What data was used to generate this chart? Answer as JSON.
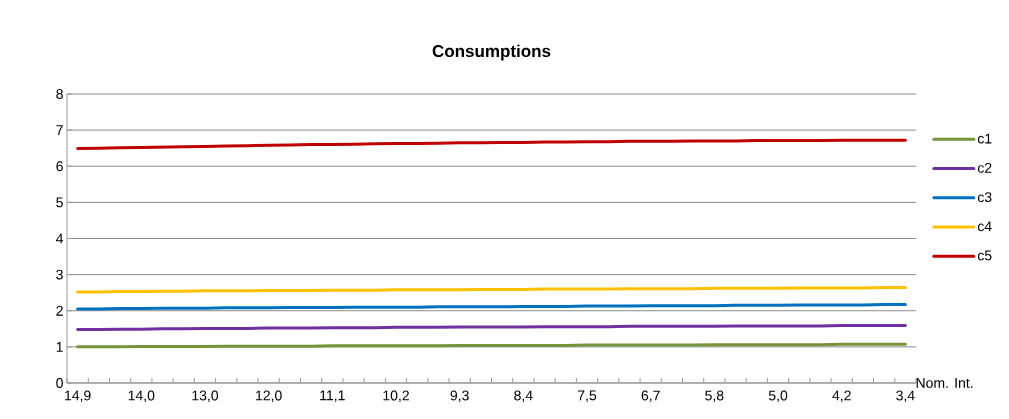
{
  "chart_data": {
    "type": "line",
    "title": "Consumptions",
    "xlabel": "Nom. Int.",
    "categories": [
      "14,9",
      null,
      null,
      "14,0",
      null,
      null,
      "13,0",
      null,
      null,
      "12,0",
      null,
      null,
      "11,1",
      null,
      null,
      "10,2",
      null,
      null,
      "9,3",
      null,
      null,
      "8,4",
      null,
      null,
      "7,5",
      null,
      null,
      "6,7",
      null,
      null,
      "5,8",
      null,
      null,
      "5,0",
      null,
      null,
      "4,2",
      null,
      null,
      "3,4"
    ],
    "ylim": [
      0,
      8
    ],
    "yticks": [
      0,
      1,
      2,
      3,
      4,
      5,
      6,
      7,
      8
    ],
    "grid": "y",
    "legend": "right",
    "marker": "none",
    "line_style": "solid",
    "series": [
      {
        "name": "c1",
        "color": "#77933c",
        "values": [
          1.0,
          1.0,
          1.0,
          1.01,
          1.01,
          1.01,
          1.01,
          1.02,
          1.02,
          1.02,
          1.02,
          1.02,
          1.03,
          1.03,
          1.03,
          1.03,
          1.03,
          1.03,
          1.04,
          1.04,
          1.04,
          1.04,
          1.04,
          1.04,
          1.05,
          1.05,
          1.05,
          1.05,
          1.05,
          1.05,
          1.06,
          1.06,
          1.06,
          1.06,
          1.06,
          1.06,
          1.07,
          1.07,
          1.07,
          1.07
        ]
      },
      {
        "name": "c2",
        "color": "#7030a0",
        "values": [
          1.48,
          1.48,
          1.49,
          1.49,
          1.5,
          1.5,
          1.51,
          1.51,
          1.51,
          1.52,
          1.52,
          1.52,
          1.53,
          1.53,
          1.53,
          1.54,
          1.54,
          1.54,
          1.55,
          1.55,
          1.55,
          1.55,
          1.56,
          1.56,
          1.56,
          1.56,
          1.57,
          1.57,
          1.57,
          1.57,
          1.57,
          1.58,
          1.58,
          1.58,
          1.58,
          1.58,
          1.59,
          1.59,
          1.59,
          1.59
        ]
      },
      {
        "name": "c3",
        "color": "#0070c0",
        "values": [
          2.05,
          2.05,
          2.06,
          2.06,
          2.07,
          2.07,
          2.07,
          2.08,
          2.08,
          2.08,
          2.09,
          2.09,
          2.09,
          2.1,
          2.1,
          2.1,
          2.1,
          2.11,
          2.11,
          2.11,
          2.11,
          2.12,
          2.12,
          2.12,
          2.13,
          2.13,
          2.13,
          2.14,
          2.14,
          2.14,
          2.14,
          2.15,
          2.15,
          2.15,
          2.16,
          2.16,
          2.16,
          2.16,
          2.17,
          2.17
        ]
      },
      {
        "name": "c4",
        "color": "#ffc000",
        "values": [
          2.52,
          2.52,
          2.53,
          2.53,
          2.54,
          2.54,
          2.55,
          2.55,
          2.55,
          2.56,
          2.56,
          2.56,
          2.57,
          2.57,
          2.57,
          2.58,
          2.58,
          2.58,
          2.58,
          2.59,
          2.59,
          2.59,
          2.6,
          2.6,
          2.6,
          2.6,
          2.61,
          2.61,
          2.61,
          2.61,
          2.62,
          2.62,
          2.62,
          2.62,
          2.63,
          2.63,
          2.63,
          2.63,
          2.64,
          2.64
        ]
      },
      {
        "name": "c5",
        "color": "#c00000",
        "values": [
          6.49,
          6.5,
          6.51,
          6.52,
          6.53,
          6.54,
          6.55,
          6.56,
          6.57,
          6.58,
          6.59,
          6.6,
          6.6,
          6.61,
          6.62,
          6.63,
          6.63,
          6.64,
          6.65,
          6.65,
          6.66,
          6.66,
          6.67,
          6.67,
          6.68,
          6.68,
          6.69,
          6.69,
          6.69,
          6.7,
          6.7,
          6.7,
          6.71,
          6.71,
          6.71,
          6.71,
          6.72,
          6.72,
          6.72,
          6.72
        ]
      }
    ]
  }
}
